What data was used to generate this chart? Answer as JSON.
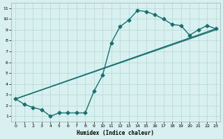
{
  "xlabel": "Humidex (Indice chaleur)",
  "ylabel": "",
  "xlim": [
    -0.5,
    23.5
  ],
  "ylim": [
    0.5,
    11.5
  ],
  "xticks": [
    0,
    1,
    2,
    3,
    4,
    5,
    6,
    7,
    8,
    9,
    10,
    11,
    12,
    13,
    14,
    15,
    16,
    17,
    18,
    19,
    20,
    21,
    22,
    23
  ],
  "yticks": [
    1,
    2,
    3,
    4,
    5,
    6,
    7,
    8,
    9,
    10,
    11
  ],
  "bg_color": "#d8f0ef",
  "grid_color": "#b0d8d8",
  "line_color": "#1a7070",
  "line1_x": [
    0,
    1,
    2,
    3,
    4,
    5,
    6,
    7,
    8,
    9,
    10,
    11,
    12,
    13,
    14,
    15,
    16,
    17,
    18,
    19,
    20,
    21,
    22,
    23
  ],
  "line1_y": [
    2.6,
    2.1,
    1.8,
    1.6,
    1.0,
    1.3,
    1.3,
    1.3,
    1.3,
    3.3,
    4.8,
    7.8,
    9.3,
    9.9,
    10.8,
    10.7,
    10.4,
    10.0,
    9.5,
    9.4,
    8.5,
    9.0,
    9.4,
    9.1
  ],
  "line2_x": [
    0,
    23
  ],
  "line2_y": [
    2.6,
    9.1
  ],
  "line3_x": [
    0,
    23
  ],
  "line3_y": [
    2.6,
    9.0
  ],
  "marker": "D",
  "markersize": 2.5,
  "linewidth": 1.0
}
